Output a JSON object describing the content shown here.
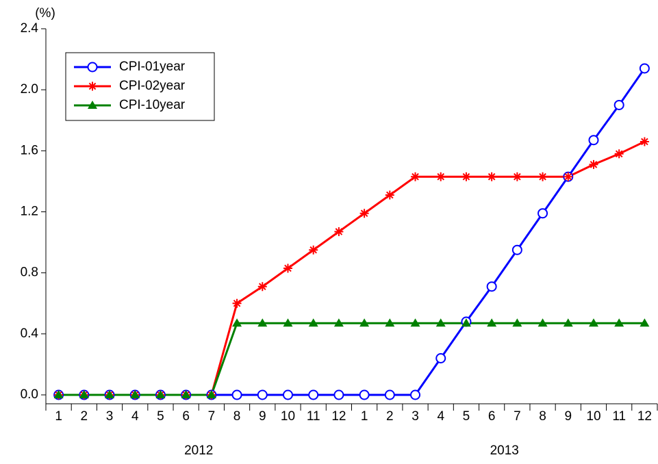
{
  "chart_data": {
    "type": "line",
    "y_label": "(%)",
    "categories": [
      "1",
      "2",
      "3",
      "4",
      "5",
      "6",
      "7",
      "8",
      "9",
      "10",
      "11",
      "12",
      "1",
      "2",
      "3",
      "4",
      "5",
      "6",
      "7",
      "8",
      "9",
      "10",
      "11",
      "12"
    ],
    "x_groups": [
      "2012",
      "2013"
    ],
    "series": [
      {
        "name": "CPI-01year",
        "color": "#0000ff",
        "marker": "circle",
        "values": [
          0,
          0,
          0,
          0,
          0,
          0,
          0,
          0,
          0,
          0,
          0,
          0,
          0,
          0,
          0,
          0.24,
          0.48,
          0.71,
          0.95,
          1.19,
          1.43,
          1.67,
          1.9,
          2.14
        ]
      },
      {
        "name": "CPI-02year",
        "color": "#ff0000",
        "marker": "star",
        "values": [
          0,
          0,
          0,
          0,
          0,
          0,
          0,
          0.6,
          0.71,
          0.83,
          0.95,
          1.07,
          1.19,
          1.31,
          1.43,
          1.43,
          1.43,
          1.43,
          1.43,
          1.43,
          1.43,
          1.51,
          1.58,
          1.66
        ]
      },
      {
        "name": "CPI-10year",
        "color": "#008000",
        "marker": "triangle",
        "values": [
          0,
          0,
          0,
          0,
          0,
          0,
          0,
          0.47,
          0.47,
          0.47,
          0.47,
          0.47,
          0.47,
          0.47,
          0.47,
          0.47,
          0.47,
          0.47,
          0.47,
          0.47,
          0.47,
          0.47,
          0.47,
          0.47
        ]
      }
    ],
    "ylim": [
      0,
      2.4
    ],
    "yticks": [
      {
        "value": 0,
        "label": "0.0"
      },
      0.4,
      0.8,
      1.2,
      1.6,
      {
        "value": 2,
        "label": "2.0"
      },
      2.4
    ],
    "legend": "upper-left"
  }
}
